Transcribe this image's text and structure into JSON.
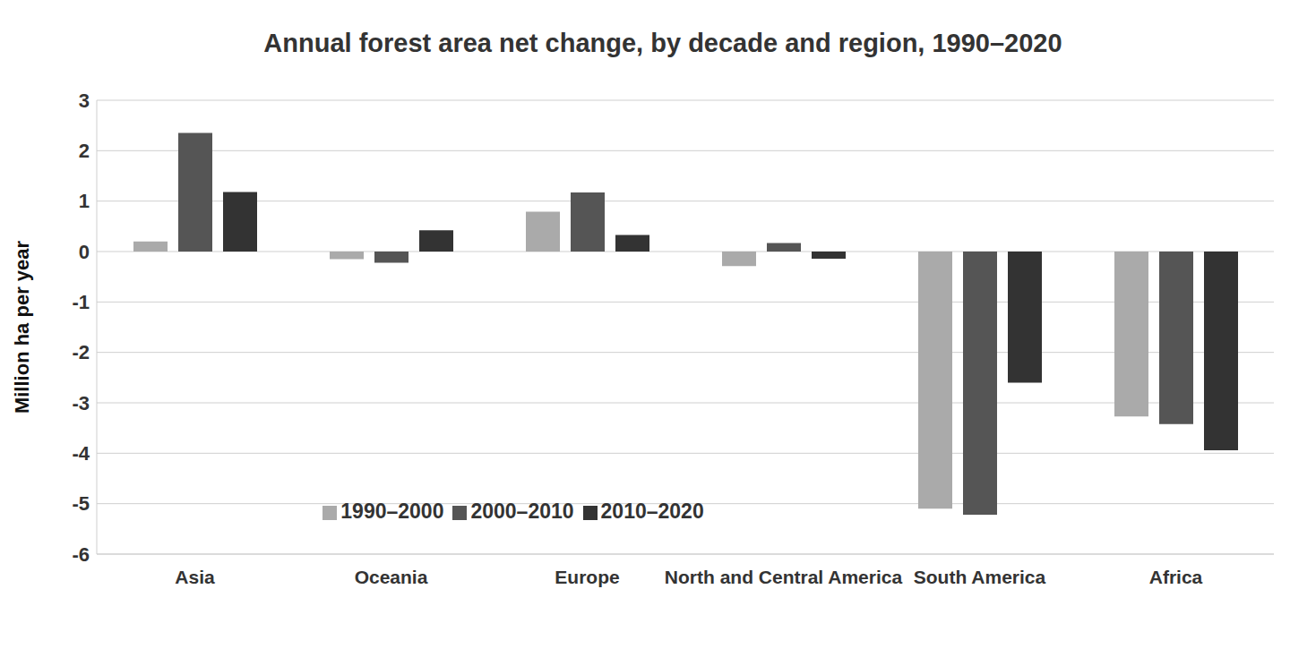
{
  "chart_data": {
    "type": "bar",
    "title": "Annual forest area net change, by decade and region, 1990–2020",
    "y_label": "Million ha per year",
    "categories": [
      "Asia",
      "Oceania",
      "Europe",
      "North and Central America",
      "South America",
      "Africa"
    ],
    "series": [
      {
        "name": "1990–2000",
        "color": "#aaaaaa",
        "values": [
          0.2,
          -0.15,
          0.79,
          -0.29,
          -5.1,
          -3.27
        ]
      },
      {
        "name": "2000–2010",
        "color": "#555555",
        "values": [
          2.35,
          -0.22,
          1.17,
          0.17,
          -5.22,
          -3.42
        ]
      },
      {
        "name": "2010–2020",
        "color": "#333333",
        "values": [
          1.18,
          0.42,
          0.33,
          -0.14,
          -2.6,
          -3.94
        ]
      }
    ],
    "ylim": [
      -6,
      3
    ],
    "yticks": [
      -6,
      -5,
      -4,
      -3,
      -2,
      -1,
      0,
      1,
      2,
      3
    ],
    "grid": true,
    "legend": "left"
  }
}
